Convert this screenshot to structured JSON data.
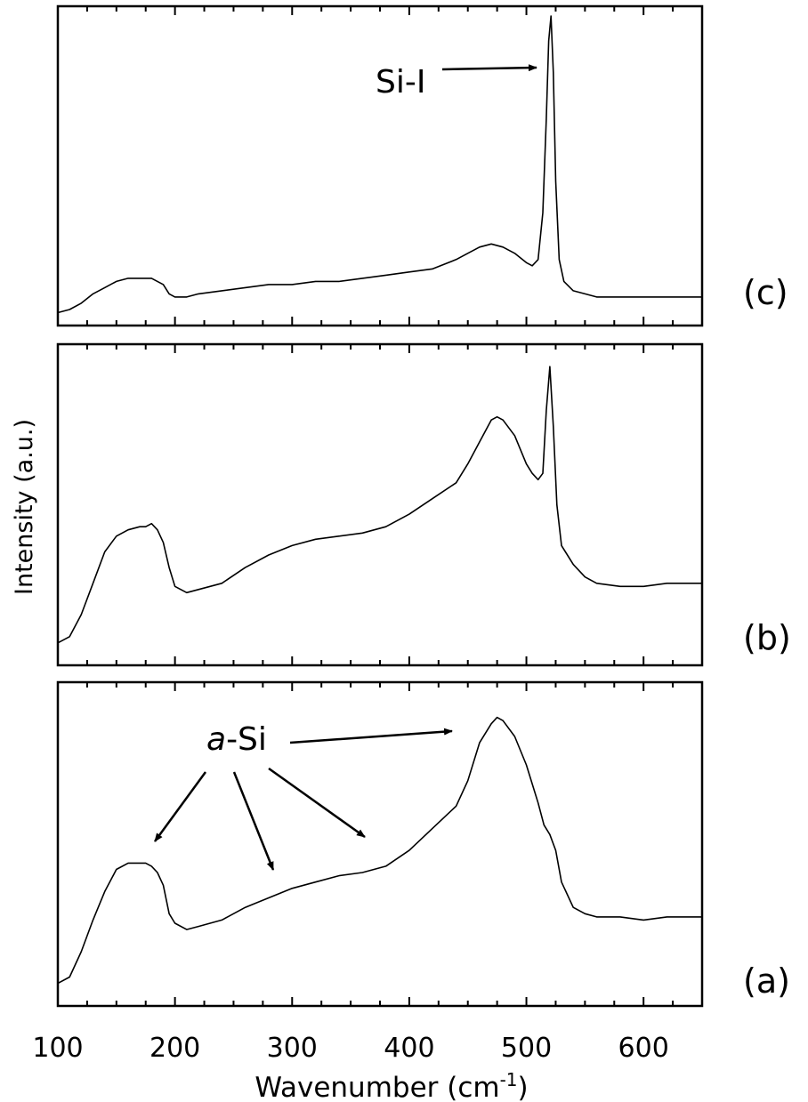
{
  "figure": {
    "xlabel_main": "Wavenumber (cm",
    "xlabel_sup": "-1",
    "xlabel_close": ")",
    "ylabel": "Intensity (a.u.)",
    "annotation_sil": "Si-I",
    "annotation_asi_italic": "a",
    "annotation_asi_rest": "-Si"
  },
  "chart_data": {
    "type": "line",
    "xlim": [
      100,
      650
    ],
    "xticks": [
      100,
      200,
      300,
      400,
      500,
      600
    ],
    "grid": false,
    "yaxis_ticks_labeled": false,
    "panels": [
      {
        "label": "(c)",
        "ylim": [
          0,
          1
        ],
        "x": [
          100,
          110,
          120,
          130,
          140,
          150,
          160,
          170,
          180,
          190,
          195,
          200,
          210,
          220,
          240,
          260,
          280,
          300,
          320,
          340,
          360,
          380,
          400,
          420,
          440,
          450,
          460,
          470,
          480,
          490,
          500,
          505,
          510,
          514,
          517,
          519,
          521,
          523,
          525,
          528,
          532,
          540,
          550,
          560,
          580,
          600,
          620,
          650
        ],
        "y": [
          0.03,
          0.04,
          0.06,
          0.09,
          0.11,
          0.13,
          0.14,
          0.14,
          0.14,
          0.12,
          0.09,
          0.08,
          0.08,
          0.09,
          0.1,
          0.11,
          0.12,
          0.12,
          0.13,
          0.13,
          0.14,
          0.15,
          0.16,
          0.17,
          0.2,
          0.22,
          0.24,
          0.25,
          0.24,
          0.22,
          0.19,
          0.18,
          0.2,
          0.35,
          0.65,
          0.9,
          0.98,
          0.8,
          0.45,
          0.2,
          0.13,
          0.1,
          0.09,
          0.08,
          0.08,
          0.08,
          0.08,
          0.08
        ]
      },
      {
        "label": "(b)",
        "ylim": [
          0,
          1
        ],
        "x": [
          100,
          110,
          120,
          130,
          140,
          150,
          160,
          170,
          175,
          180,
          185,
          190,
          195,
          200,
          210,
          220,
          240,
          260,
          280,
          300,
          320,
          340,
          360,
          380,
          400,
          420,
          440,
          450,
          460,
          470,
          475,
          480,
          490,
          500,
          505,
          510,
          514,
          517,
          520,
          523,
          526,
          530,
          540,
          550,
          560,
          580,
          600,
          620,
          650
        ],
        "y": [
          0.06,
          0.08,
          0.15,
          0.25,
          0.35,
          0.4,
          0.42,
          0.43,
          0.43,
          0.44,
          0.42,
          0.38,
          0.3,
          0.24,
          0.22,
          0.23,
          0.25,
          0.3,
          0.34,
          0.37,
          0.39,
          0.4,
          0.41,
          0.43,
          0.47,
          0.52,
          0.57,
          0.63,
          0.7,
          0.77,
          0.78,
          0.77,
          0.72,
          0.63,
          0.6,
          0.58,
          0.6,
          0.8,
          0.94,
          0.75,
          0.5,
          0.37,
          0.31,
          0.27,
          0.25,
          0.24,
          0.24,
          0.25,
          0.25
        ]
      },
      {
        "label": "(a)",
        "ylim": [
          0,
          1
        ],
        "x": [
          100,
          110,
          120,
          130,
          140,
          150,
          160,
          170,
          175,
          180,
          185,
          190,
          195,
          200,
          210,
          220,
          240,
          260,
          280,
          300,
          320,
          340,
          360,
          380,
          400,
          420,
          440,
          450,
          460,
          470,
          475,
          480,
          490,
          500,
          510,
          515,
          520,
          525,
          530,
          540,
          550,
          560,
          580,
          600,
          620,
          650
        ],
        "y": [
          0.06,
          0.08,
          0.16,
          0.26,
          0.35,
          0.42,
          0.44,
          0.44,
          0.44,
          0.43,
          0.41,
          0.37,
          0.28,
          0.25,
          0.23,
          0.24,
          0.26,
          0.3,
          0.33,
          0.36,
          0.38,
          0.4,
          0.41,
          0.43,
          0.48,
          0.55,
          0.62,
          0.7,
          0.82,
          0.88,
          0.9,
          0.89,
          0.84,
          0.75,
          0.63,
          0.56,
          0.53,
          0.48,
          0.38,
          0.3,
          0.28,
          0.27,
          0.27,
          0.26,
          0.27,
          0.27
        ]
      }
    ]
  }
}
